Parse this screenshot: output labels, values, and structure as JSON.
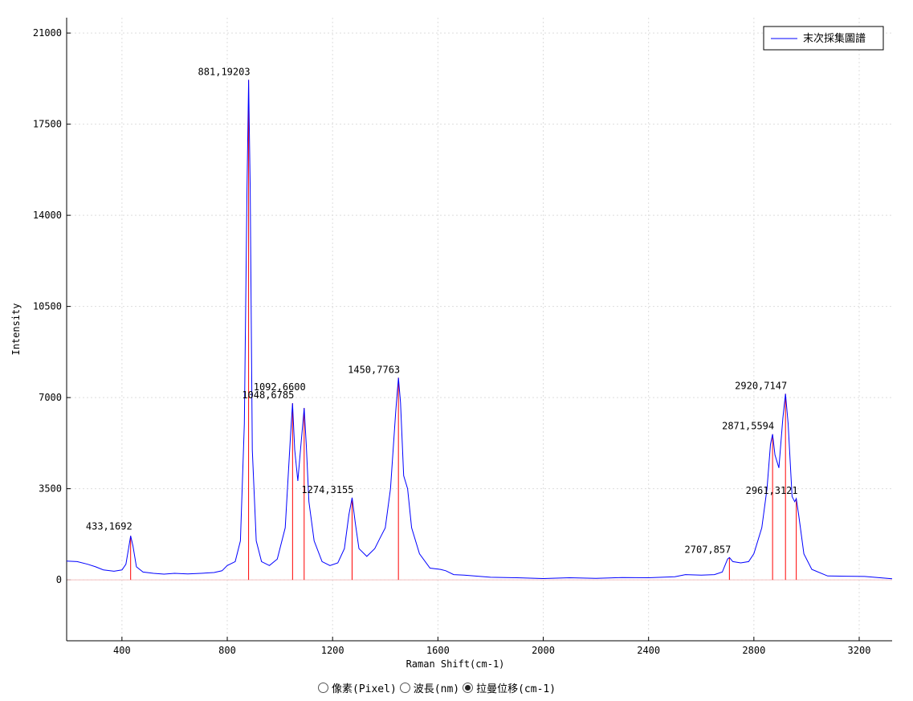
{
  "chart_data": {
    "type": "line",
    "x_label": "Raman Shift(cm-1)",
    "y_label": "Intensity",
    "xlim": [
      190,
      3325
    ],
    "ylim": [
      -2340,
      21590
    ],
    "xticks": [
      400,
      800,
      1200,
      1600,
      2000,
      2400,
      2800,
      3200
    ],
    "yticks": [
      0,
      3500,
      7000,
      10500,
      14000,
      17500,
      21000
    ],
    "grid": true,
    "legend": "top-right",
    "series": [
      {
        "name": "末次採集圖譜",
        "color": "#0000ff",
        "x": [
          190,
          230,
          270,
          300,
          330,
          370,
          400,
          415,
          425,
          433,
          442,
          455,
          480,
          520,
          560,
          600,
          650,
          700,
          750,
          780,
          800,
          830,
          850,
          865,
          875,
          881,
          887,
          895,
          910,
          930,
          960,
          990,
          1020,
          1040,
          1048,
          1056,
          1068,
          1080,
          1092,
          1100,
          1110,
          1130,
          1160,
          1190,
          1220,
          1245,
          1262,
          1274,
          1286,
          1300,
          1330,
          1360,
          1380,
          1400,
          1420,
          1440,
          1450,
          1458,
          1470,
          1485,
          1500,
          1530,
          1570,
          1610,
          1630,
          1660,
          1700,
          1800,
          1900,
          2000,
          2100,
          2200,
          2300,
          2400,
          2500,
          2540,
          2600,
          2650,
          2680,
          2700,
          2707,
          2720,
          2750,
          2780,
          2800,
          2830,
          2850,
          2863,
          2871,
          2880,
          2895,
          2910,
          2920,
          2930,
          2945,
          2955,
          2961,
          2970,
          2990,
          3020,
          3080,
          3150,
          3220,
          3270,
          3325
        ],
        "values": [
          720,
          700,
          600,
          500,
          380,
          330,
          380,
          600,
          1200,
          1692,
          1300,
          500,
          300,
          250,
          220,
          250,
          230,
          250,
          280,
          350,
          550,
          700,
          1500,
          6000,
          15000,
          19203,
          15000,
          5000,
          1500,
          700,
          550,
          800,
          2000,
          5500,
          6785,
          5000,
          3800,
          5200,
          6600,
          5200,
          3000,
          1500,
          700,
          550,
          650,
          1200,
          2500,
          3155,
          2200,
          1200,
          900,
          1200,
          1600,
          2000,
          3500,
          6500,
          7763,
          6800,
          4000,
          3500,
          2000,
          1000,
          450,
          400,
          350,
          200,
          180,
          100,
          80,
          50,
          80,
          60,
          90,
          80,
          120,
          200,
          180,
          200,
          300,
          800,
          857,
          700,
          650,
          700,
          1000,
          2000,
          3500,
          5200,
          5594,
          4800,
          4300,
          6200,
          7147,
          6000,
          3200,
          3000,
          3121,
          2500,
          1000,
          400,
          150,
          140,
          130,
          90,
          40
        ]
      }
    ],
    "peak_color": "#ff0000",
    "peaks": [
      {
        "x": 433,
        "y": 1692,
        "label": "433,1692"
      },
      {
        "x": 881,
        "y": 19203,
        "label": "881,19203"
      },
      {
        "x": 1048,
        "y": 6785,
        "label": "1048,6785"
      },
      {
        "x": 1092,
        "y": 6600,
        "label": "1092,6600"
      },
      {
        "x": 1274,
        "y": 3155,
        "label": "1274,3155"
      },
      {
        "x": 1450,
        "y": 7763,
        "label": "1450,7763"
      },
      {
        "x": 2707,
        "y": 857,
        "label": "2707,857"
      },
      {
        "x": 2871,
        "y": 5594,
        "label": "2871,5594"
      },
      {
        "x": 2920,
        "y": 7147,
        "label": "2920,7147"
      },
      {
        "x": 2961,
        "y": 3121,
        "label": "2961,3121"
      }
    ]
  },
  "ui": {
    "radio_options": [
      "像素(Pixel)",
      "波長(nm)",
      "拉曼位移(cm-1)"
    ],
    "selected": 2
  }
}
